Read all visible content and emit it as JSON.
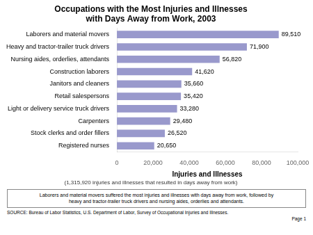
{
  "chart_data": {
    "type": "bar",
    "orientation": "horizontal",
    "title": "Occupations with the Most Injuries and Illnesses\nwith Days Away from Work, 2003",
    "categories": [
      "Registered nurses",
      "Stock clerks and order fillers",
      "Carpenters",
      "Light or delivery service truck drivers",
      "Retail salespersons",
      "Janitors and cleaners",
      "Construction laborers",
      "Nursing aides, orderlies, attendants",
      "Heavy and tractor-trailer truck drivers",
      "Laborers and material movers"
    ],
    "values": [
      20650,
      26520,
      29480,
      33280,
      35420,
      35660,
      41620,
      56820,
      71900,
      89510
    ],
    "value_labels": [
      "20,650",
      "26,520",
      "29,480",
      "33,280",
      "35,420",
      "35,660",
      "41,620",
      "56,820",
      "71,900",
      "89,510"
    ],
    "data_labels": true,
    "color": "#9999cc",
    "xlabel": "Injuries and Illnesses",
    "xlim": [
      0,
      100000
    ],
    "xticks": [
      0,
      {
        "value": 20000,
        "label": "20,000"
      },
      {
        "value": 40000,
        "label": "40,000"
      },
      {
        "value": 60000,
        "label": "60,000"
      },
      {
        "value": 80000,
        "label": "80,000"
      },
      {
        "value": 100000,
        "label": "100,000"
      }
    ],
    "grid": false,
    "annotations": [
      "(1,315,920 injuries and illnesses that resulted in days away from work)",
      "Laborers and material movers suffered the most injuries and illnesses with days away from work, followed by\nheavy and tractor-trailer truck drivers and nursing aides, orderlies and attendants.",
      "SOURCE:  Bureau of Labor Statistics, U.S. Department of Labor, Survey of Occupational Injuries and Illnesses.",
      "Page 1"
    ]
  }
}
